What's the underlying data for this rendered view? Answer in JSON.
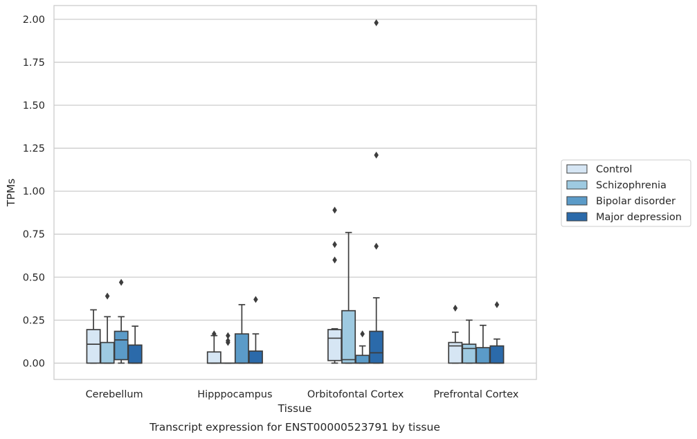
{
  "caption": "Transcript expression for ENST00000523791 by tissue",
  "chart_data": {
    "type": "box",
    "xlabel": "Tissue",
    "ylabel": "TPMs",
    "ylim": [
      -0.095,
      2.08
    ],
    "yticks": [
      0.0,
      0.25,
      0.5,
      0.75,
      1.0,
      1.25,
      1.5,
      1.75,
      2.0
    ],
    "ytick_labels": [
      "0.00",
      "0.25",
      "0.50",
      "0.75",
      "1.00",
      "1.25",
      "1.50",
      "1.75",
      "2.00"
    ],
    "grid": "horizontal",
    "legend_position": "right",
    "categories": [
      "Cerebellum",
      "Hipppocampus",
      "Orbitofontal Cortex",
      "Prefrontal Cortex"
    ],
    "series": [
      {
        "name": "Control",
        "color": "#d6e6f4",
        "boxes": [
          {
            "whislo": 0.0,
            "q1": 0.0,
            "med": 0.11,
            "q3": 0.195,
            "whishi": 0.31,
            "fliers": []
          },
          {
            "whislo": 0.0,
            "q1": 0.0,
            "med": 0.0,
            "q3": 0.065,
            "whishi": 0.16,
            "fliers": [
              0.17
            ]
          },
          {
            "whislo": 0.0,
            "q1": 0.015,
            "med": 0.145,
            "q3": 0.195,
            "whishi": 0.2,
            "fliers": [
              0.6,
              0.69,
              0.89
            ]
          },
          {
            "whislo": 0.0,
            "q1": 0.0,
            "med": 0.1,
            "q3": 0.12,
            "whishi": 0.18,
            "fliers": [
              0.32
            ]
          }
        ]
      },
      {
        "name": "Schizophrenia",
        "color": "#9ecae1",
        "boxes": [
          {
            "whislo": 0.0,
            "q1": 0.0,
            "med": 0.0,
            "q3": 0.12,
            "whishi": 0.27,
            "fliers": [
              0.39
            ]
          },
          {
            "whislo": 0.0,
            "q1": 0.0,
            "med": 0.0,
            "q3": 0.0,
            "whishi": 0.0,
            "fliers": [
              0.12,
              0.13,
              0.16
            ]
          },
          {
            "whislo": 0.0,
            "q1": 0.0,
            "med": 0.02,
            "q3": 0.305,
            "whishi": 0.76,
            "fliers": []
          },
          {
            "whislo": 0.0,
            "q1": 0.0,
            "med": 0.085,
            "q3": 0.11,
            "whishi": 0.25,
            "fliers": []
          }
        ]
      },
      {
        "name": "Bipolar disorder",
        "color": "#5b9bc8",
        "boxes": [
          {
            "whislo": 0.0,
            "q1": 0.02,
            "med": 0.135,
            "q3": 0.185,
            "whishi": 0.27,
            "fliers": [
              0.47
            ]
          },
          {
            "whislo": 0.0,
            "q1": 0.0,
            "med": 0.0,
            "q3": 0.17,
            "whishi": 0.34,
            "fliers": []
          },
          {
            "whislo": 0.0,
            "q1": 0.0,
            "med": 0.0,
            "q3": 0.045,
            "whishi": 0.1,
            "fliers": [
              0.17
            ]
          },
          {
            "whislo": 0.0,
            "q1": 0.0,
            "med": 0.0,
            "q3": 0.09,
            "whishi": 0.22,
            "fliers": []
          }
        ]
      },
      {
        "name": "Major depression",
        "color": "#2b6aaa",
        "boxes": [
          {
            "whislo": 0.0,
            "q1": 0.0,
            "med": 0.0,
            "q3": 0.105,
            "whishi": 0.215,
            "fliers": []
          },
          {
            "whislo": 0.0,
            "q1": 0.0,
            "med": 0.0,
            "q3": 0.07,
            "whishi": 0.17,
            "fliers": [
              0.37
            ]
          },
          {
            "whislo": 0.0,
            "q1": 0.0,
            "med": 0.06,
            "q3": 0.185,
            "whishi": 0.38,
            "fliers": [
              0.68,
              1.21,
              1.98
            ]
          },
          {
            "whislo": 0.0,
            "q1": 0.0,
            "med": 0.0,
            "q3": 0.1,
            "whishi": 0.14,
            "fliers": [
              0.34
            ]
          }
        ]
      }
    ]
  }
}
